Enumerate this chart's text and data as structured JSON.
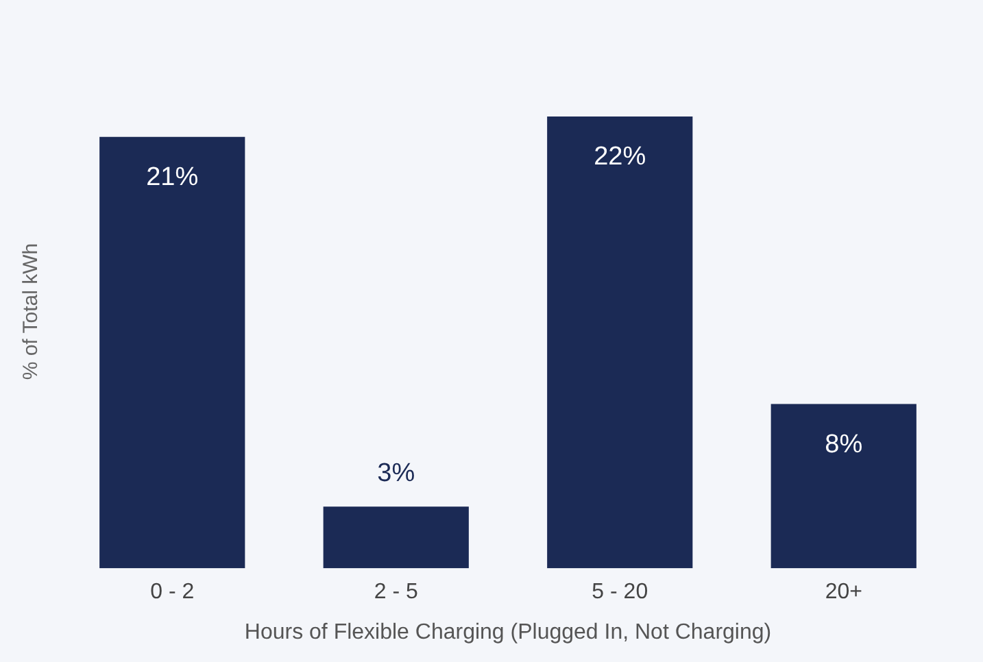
{
  "chart_data": {
    "type": "bar",
    "xlabel": "Hours of Flexible Charging (Plugged In, Not Charging)",
    "ylabel": "% of Total kWh",
    "categories": [
      "0 - 2",
      "2 - 5",
      "5 - 20",
      "20+"
    ],
    "series": [
      {
        "color": "#1b2a55",
        "values": [
          21,
          3,
          22,
          8
        ],
        "value_labels": [
          "21%",
          "3%",
          "22%",
          "8%"
        ]
      }
    ],
    "grid": false,
    "legend": false
  }
}
